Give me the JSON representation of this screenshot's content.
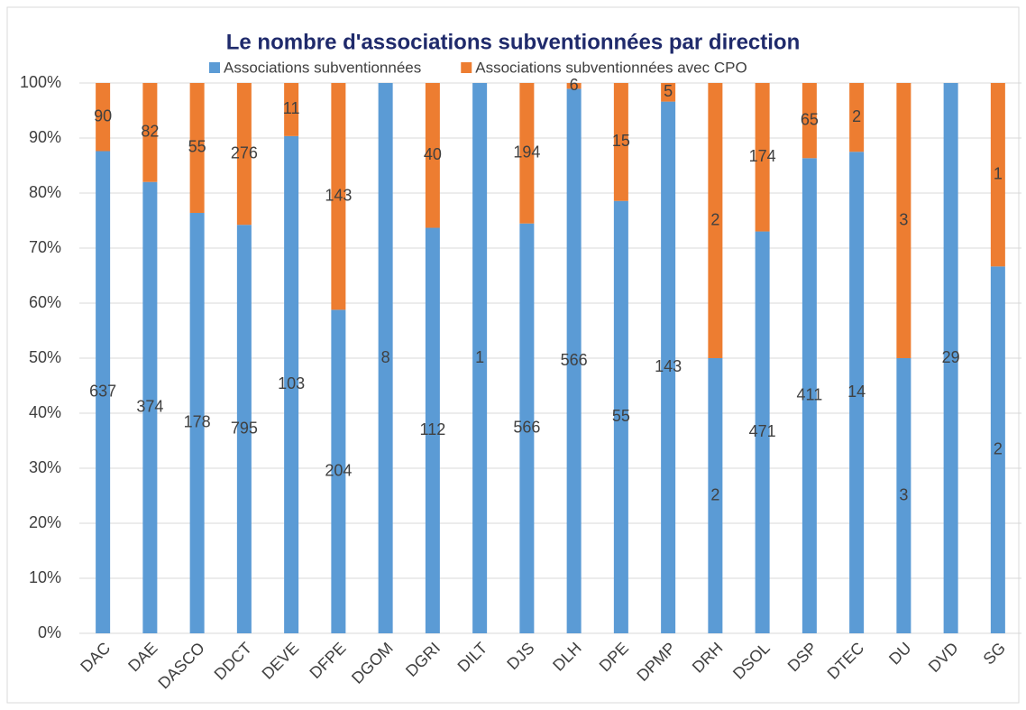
{
  "chart_data": {
    "type": "bar",
    "stacking": "percent",
    "title": "Le nombre d'associations subventionnées par direction",
    "categories": [
      "DAC",
      "DAE",
      "DASCO",
      "DDCT",
      "DEVE",
      "DFPE",
      "DGOM",
      "DGRI",
      "DILT",
      "DJS",
      "DLH",
      "DPE",
      "DPMP",
      "DRH",
      "DSOL",
      "DSP",
      "DTEC",
      "DU",
      "DVD",
      "SG"
    ],
    "series": [
      {
        "name": "Associations subventionnées",
        "color": "#5b9bd5",
        "values": [
          637,
          374,
          178,
          795,
          103,
          204,
          8,
          112,
          1,
          566,
          566,
          55,
          143,
          2,
          471,
          411,
          14,
          3,
          29,
          2
        ]
      },
      {
        "name": "Associations subventionnées avec CPO",
        "color": "#ed7d31",
        "values": [
          90,
          82,
          55,
          276,
          11,
          143,
          null,
          40,
          null,
          194,
          6,
          15,
          5,
          2,
          174,
          65,
          2,
          3,
          null,
          1
        ]
      }
    ],
    "ylim": [
      0,
      100
    ],
    "yticks": [
      {
        "value": 0,
        "label": "0%"
      },
      {
        "value": 10,
        "label": "10%"
      },
      {
        "value": 20,
        "label": "20%"
      },
      {
        "value": 30,
        "label": "30%"
      },
      {
        "value": 40,
        "label": "40%"
      },
      {
        "value": 50,
        "label": "50%"
      },
      {
        "value": 60,
        "label": "60%"
      },
      {
        "value": 70,
        "label": "70%"
      },
      {
        "value": 80,
        "label": "80%"
      },
      {
        "value": 90,
        "label": "90%"
      },
      {
        "value": 100,
        "label": "100%"
      }
    ],
    "grid": true,
    "legend": "top"
  }
}
